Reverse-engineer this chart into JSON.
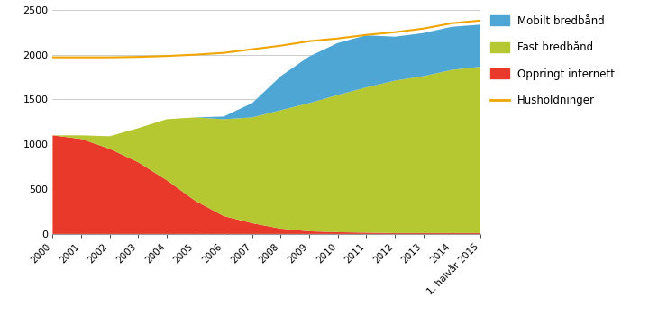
{
  "years": [
    2000,
    2001,
    2002,
    2003,
    2004,
    2005,
    2006,
    2007,
    2008,
    2009,
    2010,
    2011,
    2012,
    2013,
    2014,
    2015
  ],
  "oppringt": [
    1100,
    1060,
    950,
    800,
    600,
    370,
    200,
    120,
    60,
    30,
    20,
    15,
    10,
    10,
    10,
    10
  ],
  "fast": [
    0,
    40,
    140,
    380,
    680,
    930,
    1080,
    1180,
    1320,
    1430,
    1530,
    1620,
    1700,
    1750,
    1820,
    1855
  ],
  "mobilt": [
    0,
    0,
    0,
    0,
    0,
    0,
    30,
    160,
    380,
    520,
    580,
    580,
    490,
    480,
    480,
    470
  ],
  "husholdninger": [
    1970,
    1970,
    1970,
    1975,
    1985,
    2000,
    2020,
    2060,
    2100,
    2150,
    2180,
    2220,
    2250,
    2290,
    2350,
    2380
  ],
  "color_oppringt": "#e8392a",
  "color_fast": "#b5c832",
  "color_mobilt": "#4da6d4",
  "color_husholdninger": "#f0a500",
  "ylim": [
    0,
    2500
  ],
  "yticks": [
    0,
    500,
    1000,
    1500,
    2000,
    2500
  ],
  "legend_labels": [
    "Mobilt bredbånd",
    "Fast bredbånd",
    "Oppringt internett",
    "Husholdninger"
  ],
  "tick_labels": [
    "2000",
    "2001",
    "2002",
    "2003",
    "2004",
    "2005",
    "2006",
    "2007",
    "2008",
    "2009",
    "2010",
    "2011",
    "2012",
    "2013",
    "2014",
    "1. halvår 2015"
  ],
  "figsize": [
    7.3,
    3.61
  ],
  "dpi": 100
}
